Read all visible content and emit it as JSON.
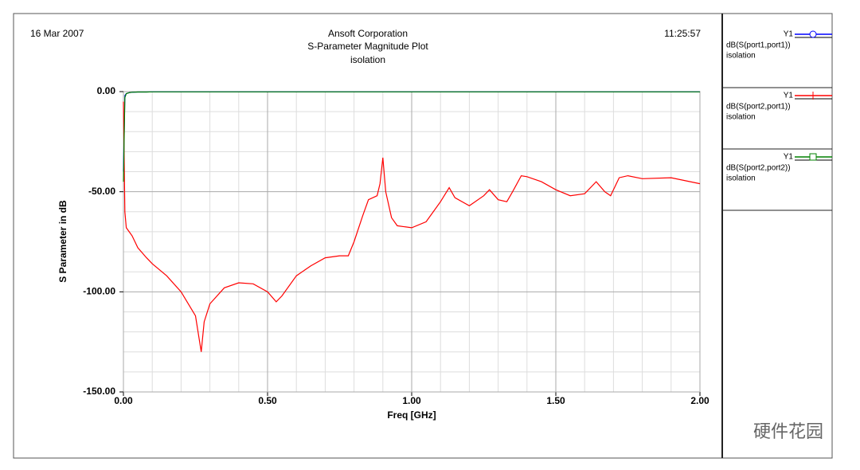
{
  "chart_data": {
    "type": "line",
    "date": "16 Mar 2007",
    "time": "11:25:57",
    "company": "Ansoft Corporation",
    "title": "S-Parameter Magnitude Plot",
    "subtitle": "isolation",
    "x_label": "Freq [GHz]",
    "y_label": "S Parameter in dB",
    "watermark": "硬件花园",
    "grid": true,
    "xlim": [
      0,
      2
    ],
    "ylim": [
      -150,
      0
    ],
    "xticks": [
      {
        "value": 0,
        "label": "0.00"
      },
      {
        "value": 0.5,
        "label": "0.50"
      },
      {
        "value": 1,
        "label": "1.00"
      },
      {
        "value": 1.5,
        "label": "1.50"
      },
      {
        "value": 2,
        "label": "2.00"
      }
    ],
    "yticks": [
      {
        "value": 0,
        "label": "0.00"
      },
      {
        "value": -50,
        "label": "-50.00"
      },
      {
        "value": -100,
        "label": "-100.00"
      },
      {
        "value": -150,
        "label": "-150.00"
      }
    ],
    "x": [
      0,
      0.005,
      0.01,
      0.02,
      0.03,
      0.05,
      0.08,
      0.1,
      0.15,
      0.2,
      0.25,
      0.27,
      0.28,
      0.3,
      0.35,
      0.4,
      0.45,
      0.5,
      0.53,
      0.55,
      0.6,
      0.65,
      0.7,
      0.75,
      0.78,
      0.8,
      0.83,
      0.85,
      0.88,
      0.89,
      0.9,
      0.91,
      0.93,
      0.95,
      1.0,
      1.05,
      1.1,
      1.13,
      1.15,
      1.2,
      1.25,
      1.27,
      1.3,
      1.33,
      1.35,
      1.38,
      1.4,
      1.45,
      1.5,
      1.55,
      1.6,
      1.64,
      1.67,
      1.69,
      1.72,
      1.75,
      1.8,
      1.9,
      2.0
    ],
    "series": [
      {
        "name": "dB(S(port1,port1))",
        "axis_name": "Y1",
        "setup": "isolation",
        "color": "#0000ff",
        "marker": "circle",
        "values": [
          -40,
          -2,
          -1,
          -0.5,
          -0.3,
          -0.2,
          -0.2,
          -0.1,
          -0.1,
          -0.1,
          -0.1,
          -0.1,
          -0.1,
          -0.1,
          -0.1,
          -0.1,
          -0.1,
          -0.1,
          -0.1,
          -0.1,
          -0.1,
          -0.1,
          -0.1,
          -0.1,
          -0.1,
          -0.1,
          -0.1,
          -0.1,
          -0.1,
          -0.1,
          -0.1,
          -0.1,
          -0.1,
          -0.1,
          -0.1,
          -0.1,
          -0.1,
          -0.1,
          -0.1,
          -0.1,
          -0.1,
          -0.1,
          -0.1,
          -0.1,
          -0.1,
          -0.1,
          -0.1,
          -0.1,
          -0.1,
          -0.1,
          -0.1,
          -0.1,
          -0.1,
          -0.1,
          -0.1,
          -0.1,
          -0.1,
          -0.1,
          -0.1
        ]
      },
      {
        "name": "dB(S(port2,port1))",
        "axis_name": "Y1",
        "setup": "isolation",
        "color": "#ff0000",
        "marker": "plus",
        "values": [
          -5,
          -60,
          -68,
          -70,
          -72,
          -78,
          -83,
          -86,
          -92,
          -100,
          -112,
          -130,
          -115,
          -106,
          -98,
          -95.5,
          -96,
          -100,
          -105,
          -102,
          -92,
          -87,
          -83,
          -82,
          -82,
          -75,
          -62,
          -54,
          -52,
          -46,
          -33,
          -50,
          -63,
          -67,
          -68,
          -65,
          -55,
          -48,
          -53,
          -57,
          -52,
          -49,
          -54,
          -55,
          -50,
          -42,
          -42.5,
          -45,
          -49,
          -52,
          -51,
          -45,
          -50,
          -52,
          -43,
          -42,
          -43.5,
          -43,
          -46
        ]
      },
      {
        "name": "dB(S(port2,port2))",
        "axis_name": "Y1",
        "setup": "isolation",
        "color": "#008000",
        "marker": "square",
        "values": [
          -45,
          -3,
          -1,
          -0.5,
          -0.3,
          -0.2,
          -0.2,
          -0.1,
          -0.1,
          -0.1,
          -0.1,
          -0.1,
          -0.1,
          -0.1,
          -0.1,
          -0.1,
          -0.1,
          -0.1,
          -0.1,
          -0.1,
          -0.1,
          -0.1,
          -0.1,
          -0.1,
          -0.1,
          -0.1,
          -0.1,
          -0.1,
          -0.1,
          -0.1,
          -0.1,
          -0.1,
          -0.1,
          -0.1,
          -0.1,
          -0.1,
          -0.1,
          -0.1,
          -0.1,
          -0.1,
          -0.1,
          -0.1,
          -0.1,
          -0.1,
          -0.1,
          -0.1,
          -0.1,
          -0.1,
          -0.1,
          -0.1,
          -0.1,
          -0.1,
          -0.1,
          -0.1,
          -0.1,
          -0.1,
          -0.1,
          -0.1,
          -0.1
        ]
      }
    ]
  }
}
